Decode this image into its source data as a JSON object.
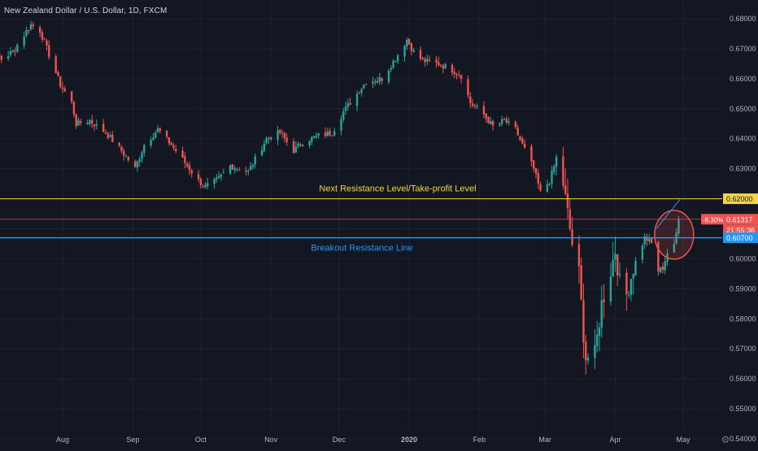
{
  "header": {
    "title": "New Zealand Dollar / U.S. Dollar, 1D, FXCM"
  },
  "colors": {
    "background": "#131722",
    "grid": "#1e222d",
    "up": "#26a69a",
    "down": "#ef5350",
    "resistance": "#f2d34a",
    "breakout": "#2196f3",
    "price_line": "#ef5350",
    "axis_text": "#b2b5be"
  },
  "chart_data": {
    "type": "candlestick",
    "title": "New Zealand Dollar / U.S. Dollar, 1D, FXCM",
    "ylim": [
      0.54,
      0.685
    ],
    "x_ticks": [
      "Aug",
      "Sep",
      "Oct",
      "Nov",
      "Dec",
      "2020",
      "Feb",
      "Mar",
      "Apr",
      "May"
    ],
    "y_ticks": [
      "0.68000",
      "0.67000",
      "0.66000",
      "0.65000",
      "0.64000",
      "0.63000",
      "0.62000",
      "0.61000",
      "0.60000",
      "0.59000",
      "0.58000",
      "0.57000",
      "0.56000",
      "0.55000",
      "0.54000"
    ],
    "grid": true,
    "price_path": [
      {
        "date": "2019-06-24",
        "price": 0.668
      },
      {
        "date": "2019-06-29",
        "price": 0.672
      },
      {
        "date": "2019-07-05",
        "price": 0.6665
      },
      {
        "date": "2019-07-10",
        "price": 0.669
      },
      {
        "date": "2019-07-18",
        "price": 0.678
      },
      {
        "date": "2019-07-22",
        "price": 0.676
      },
      {
        "date": "2019-07-26",
        "price": 0.668
      },
      {
        "date": "2019-07-31",
        "price": 0.658
      },
      {
        "date": "2019-08-05",
        "price": 0.652
      },
      {
        "date": "2019-08-07",
        "price": 0.645
      },
      {
        "date": "2019-08-13",
        "price": 0.646
      },
      {
        "date": "2019-08-20",
        "price": 0.642
      },
      {
        "date": "2019-08-27",
        "price": 0.636
      },
      {
        "date": "2019-09-02",
        "price": 0.63
      },
      {
        "date": "2019-09-06",
        "price": 0.638
      },
      {
        "date": "2019-09-12",
        "price": 0.643
      },
      {
        "date": "2019-09-18",
        "price": 0.638
      },
      {
        "date": "2019-09-24",
        "price": 0.632
      },
      {
        "date": "2019-09-30",
        "price": 0.626
      },
      {
        "date": "2019-10-03",
        "price": 0.624
      },
      {
        "date": "2019-10-08",
        "price": 0.626
      },
      {
        "date": "2019-10-14",
        "price": 0.631
      },
      {
        "date": "2019-10-22",
        "price": 0.629
      },
      {
        "date": "2019-10-30",
        "price": 0.64
      },
      {
        "date": "2019-11-05",
        "price": 0.642
      },
      {
        "date": "2019-11-11",
        "price": 0.636
      },
      {
        "date": "2019-11-15",
        "price": 0.639
      },
      {
        "date": "2019-11-22",
        "price": 0.641
      },
      {
        "date": "2019-11-28",
        "price": 0.642
      },
      {
        "date": "2019-12-03",
        "price": 0.649
      },
      {
        "date": "2019-12-09",
        "price": 0.655
      },
      {
        "date": "2019-12-13",
        "price": 0.659
      },
      {
        "date": "2019-12-20",
        "price": 0.66
      },
      {
        "date": "2019-12-27",
        "price": 0.668
      },
      {
        "date": "2019-12-31",
        "price": 0.673
      },
      {
        "date": "2020-01-03",
        "price": 0.669
      },
      {
        "date": "2020-01-07",
        "price": 0.666
      },
      {
        "date": "2020-01-14",
        "price": 0.665
      },
      {
        "date": "2020-01-20",
        "price": 0.663
      },
      {
        "date": "2020-01-24",
        "price": 0.661
      },
      {
        "date": "2020-01-28",
        "price": 0.652
      },
      {
        "date": "2020-02-03",
        "price": 0.648
      },
      {
        "date": "2020-02-07",
        "price": 0.644
      },
      {
        "date": "2020-02-12",
        "price": 0.646
      },
      {
        "date": "2020-02-17",
        "price": 0.643
      },
      {
        "date": "2020-02-20",
        "price": 0.638
      },
      {
        "date": "2020-02-25",
        "price": 0.63
      },
      {
        "date": "2020-02-28",
        "price": 0.622
      },
      {
        "date": "2020-03-03",
        "price": 0.626
      },
      {
        "date": "2020-03-06",
        "price": 0.633
      },
      {
        "date": "2020-03-09",
        "price": 0.625
      },
      {
        "date": "2020-03-11",
        "price": 0.615
      },
      {
        "date": "2020-03-13",
        "price": 0.605
      },
      {
        "date": "2020-03-16",
        "price": 0.595
      },
      {
        "date": "2020-03-18",
        "price": 0.575
      },
      {
        "date": "2020-03-19",
        "price": 0.567
      },
      {
        "date": "2020-03-23",
        "price": 0.568
      },
      {
        "date": "2020-03-26",
        "price": 0.585
      },
      {
        "date": "2020-03-30",
        "price": 0.596
      },
      {
        "date": "2020-04-01",
        "price": 0.603
      },
      {
        "date": "2020-04-03",
        "price": 0.592
      },
      {
        "date": "2020-04-06",
        "price": 0.588
      },
      {
        "date": "2020-04-09",
        "price": 0.597
      },
      {
        "date": "2020-04-14",
        "price": 0.607
      },
      {
        "date": "2020-04-17",
        "price": 0.605
      },
      {
        "date": "2020-04-20",
        "price": 0.596
      },
      {
        "date": "2020-04-22",
        "price": 0.597
      },
      {
        "date": "2020-04-24",
        "price": 0.602
      },
      {
        "date": "2020-04-27",
        "price": 0.604
      },
      {
        "date": "2020-04-29",
        "price": 0.6132
      }
    ],
    "annotations": {
      "resistance": {
        "price": 0.62,
        "label": "Next Resistance Level/Take-profit Level",
        "tag": "0.62000"
      },
      "breakout": {
        "price": 0.607,
        "label": "Breakout Resistance Line",
        "tag": "0.60700"
      },
      "last_price": {
        "price": 0.61317,
        "tag": "0.61317",
        "change": "-8.30%",
        "countdown": "21:55:36"
      },
      "circle_center_price": 0.608
    }
  }
}
